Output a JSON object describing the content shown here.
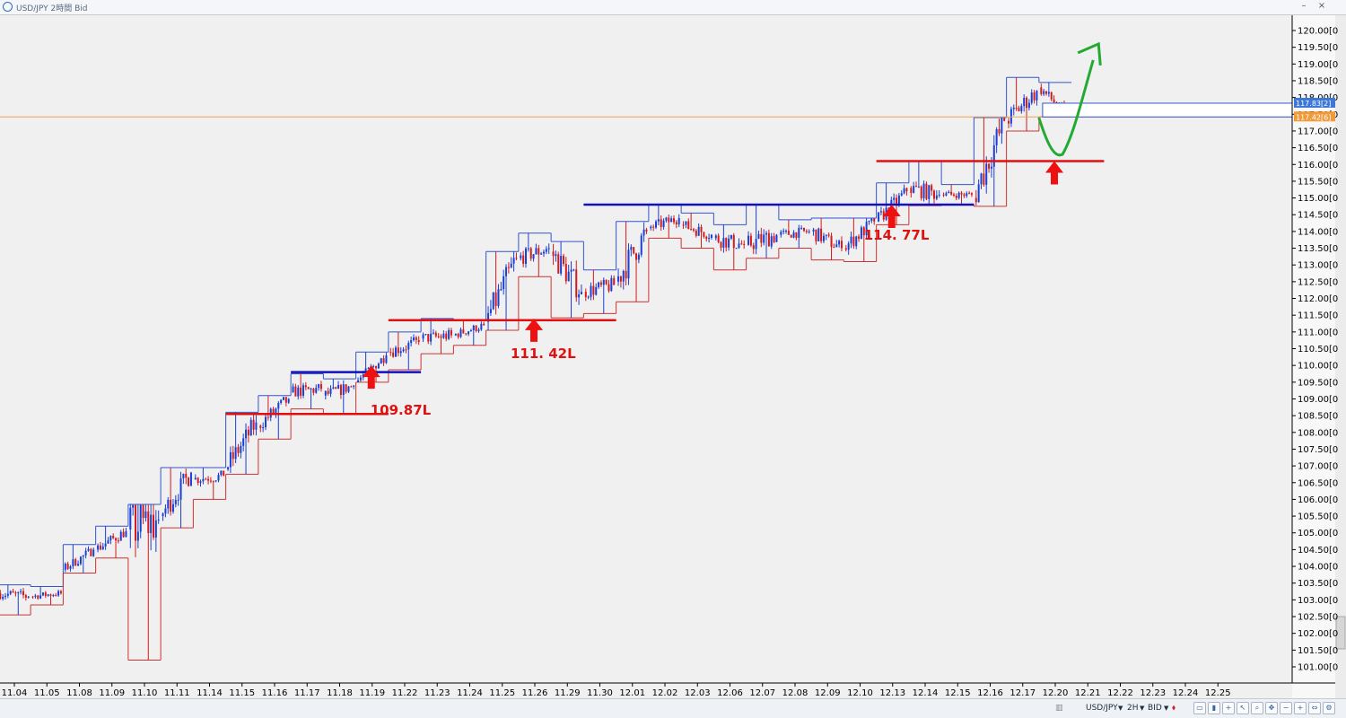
{
  "window": {
    "title": "USD/JPY 2時間 Bid",
    "minimize_icon": "minimize-icon",
    "close_icon": "close-icon"
  },
  "statusbar": {
    "symbol": "USD/JPY",
    "timeframe": "2H",
    "price_type": "BID"
  },
  "colors": {
    "up": "#1a3fd6",
    "down": "#d41a1a",
    "hline_red": "#e01010",
    "hline_blue": "#1010c0",
    "arrow_red": "#ee1111",
    "forecast_green": "#22aa33",
    "current_line": "#f0a050",
    "box_top": "#3355cc",
    "box_bottom": "#cc3333"
  },
  "chart_data": {
    "type": "candlestick",
    "title": "USD/JPY 2時間 Bid",
    "ylim": [
      100.75,
      120.5
    ],
    "y_ticks": [
      "120.00[0",
      "119.50[0",
      "119.00[0",
      "118.50[0",
      "118.00[0",
      "117.50[0",
      "117.00[0",
      "116.50[0",
      "116.00[0",
      "115.50[0",
      "115.00[0",
      "114.50[0",
      "114.00[0",
      "113.50[0",
      "113.00[0",
      "112.50[0",
      "112.00[0",
      "111.50[0",
      "111.00[0",
      "110.50[0",
      "110.00[0",
      "109.50[0",
      "109.00[0",
      "108.50[0",
      "108.00[0",
      "107.50[0",
      "107.00[0",
      "106.50[0",
      "106.00[0",
      "105.50[0",
      "105.00[0",
      "104.50[0",
      "104.00[0",
      "103.50[0",
      "103.00[0",
      "102.50[0",
      "102.00[0",
      "101.50[0",
      "101.00[0"
    ],
    "x_ticks": [
      "11.04",
      "11.05",
      "11.08",
      "11.09",
      "11.10",
      "11.11",
      "11.14",
      "11.15",
      "11.16",
      "11.17",
      "11.18",
      "11.19",
      "11.22",
      "11.23",
      "11.24",
      "11.25",
      "11.26",
      "11.29",
      "11.30",
      "12.01",
      "12.02",
      "12.03",
      "12.06",
      "12.07",
      "12.08",
      "12.09",
      "12.10",
      "12.13",
      "12.14",
      "12.15",
      "12.16",
      "12.17",
      "12.20",
      "12.21",
      "12.22",
      "12.23",
      "12.24",
      "12.25"
    ],
    "day_ranges": [
      {
        "day": "11.04",
        "open": 103.2,
        "high": 103.45,
        "low": 102.55,
        "close": 103.1
      },
      {
        "day": "11.05",
        "open": 103.1,
        "high": 103.4,
        "low": 102.85,
        "close": 103.2
      },
      {
        "day": "11.08",
        "open": 103.9,
        "high": 104.65,
        "low": 103.8,
        "close": 104.5
      },
      {
        "day": "11.09",
        "open": 104.5,
        "high": 105.2,
        "low": 104.25,
        "close": 105.05
      },
      {
        "day": "11.10",
        "open": 105.1,
        "high": 105.85,
        "low": 101.2,
        "close": 105.4
      },
      {
        "day": "11.11",
        "open": 105.5,
        "high": 106.95,
        "low": 105.15,
        "close": 106.8
      },
      {
        "day": "11.14",
        "open": 106.6,
        "high": 106.95,
        "low": 106.0,
        "close": 106.7
      },
      {
        "day": "11.15",
        "open": 106.9,
        "high": 108.6,
        "low": 106.75,
        "close": 108.3
      },
      {
        "day": "11.16",
        "open": 108.2,
        "high": 109.1,
        "low": 107.8,
        "close": 109.0
      },
      {
        "day": "11.17",
        "open": 109.2,
        "high": 109.75,
        "low": 108.7,
        "close": 109.3
      },
      {
        "day": "11.18",
        "open": 109.1,
        "high": 109.6,
        "low": 108.55,
        "close": 109.4
      },
      {
        "day": "11.19",
        "open": 109.5,
        "high": 110.4,
        "low": 109.5,
        "close": 110.3
      },
      {
        "day": "11.22",
        "open": 110.4,
        "high": 111.0,
        "low": 109.87,
        "close": 110.7
      },
      {
        "day": "11.23",
        "open": 110.8,
        "high": 111.4,
        "low": 110.35,
        "close": 110.9
      },
      {
        "day": "11.24",
        "open": 110.9,
        "high": 111.35,
        "low": 110.6,
        "close": 111.2
      },
      {
        "day": "11.25",
        "open": 111.3,
        "high": 113.4,
        "low": 111.05,
        "close": 113.2
      },
      {
        "day": "11.26",
        "open": 113.2,
        "high": 113.95,
        "low": 112.65,
        "close": 113.5
      },
      {
        "day": "11.29",
        "open": 113.4,
        "high": 113.7,
        "low": 111.42,
        "close": 112.2
      },
      {
        "day": "11.30",
        "open": 112.2,
        "high": 112.85,
        "low": 111.55,
        "close": 112.4
      },
      {
        "day": "12.01",
        "open": 112.5,
        "high": 114.3,
        "low": 111.9,
        "close": 114.0
      },
      {
        "day": "12.02",
        "open": 114.1,
        "high": 114.8,
        "low": 113.8,
        "close": 114.4
      },
      {
        "day": "12.03",
        "open": 114.2,
        "high": 114.55,
        "low": 113.5,
        "close": 113.9
      },
      {
        "day": "12.06",
        "open": 113.8,
        "high": 114.2,
        "low": 112.85,
        "close": 113.6
      },
      {
        "day": "12.07",
        "open": 113.6,
        "high": 114.8,
        "low": 113.2,
        "close": 113.9
      },
      {
        "day": "12.08",
        "open": 113.9,
        "high": 114.35,
        "low": 113.5,
        "close": 114.0
      },
      {
        "day": "12.09",
        "open": 114.0,
        "high": 114.4,
        "low": 113.15,
        "close": 113.5
      },
      {
        "day": "12.10",
        "open": 113.5,
        "high": 114.4,
        "low": 113.1,
        "close": 114.3
      },
      {
        "day": "12.13",
        "open": 114.3,
        "high": 115.45,
        "low": 114.2,
        "close": 115.2
      },
      {
        "day": "12.14",
        "open": 115.3,
        "high": 116.1,
        "low": 114.77,
        "close": 115.1
      },
      {
        "day": "12.15",
        "open": 115.1,
        "high": 115.4,
        "low": 114.8,
        "close": 115.1
      },
      {
        "day": "12.16",
        "open": 115.0,
        "high": 117.4,
        "low": 114.75,
        "close": 117.3
      },
      {
        "day": "12.17",
        "open": 117.3,
        "high": 118.6,
        "low": 117.0,
        "close": 118.2
      },
      {
        "day": "12.20",
        "open": 118.3,
        "high": 118.45,
        "low": 117.42,
        "close": 117.45
      }
    ],
    "price_labels": [
      {
        "text": "117.83[2]",
        "price": 117.83
      },
      {
        "text": "117.42[6]",
        "price": 117.42
      }
    ],
    "current_price": 117.42,
    "annotations": [
      {
        "text": "109.87L",
        "price": 109.87
      },
      {
        "text": "111. 42L",
        "price": 111.42
      },
      {
        "text": "114. 77L",
        "price": 114.77
      }
    ],
    "horizontal_lines": [
      {
        "color": "red",
        "price": 108.55,
        "from_day": "11.15",
        "to_day": "11.19"
      },
      {
        "color": "blue",
        "price": 109.8,
        "from_day": "11.17",
        "to_day": "11.22"
      },
      {
        "color": "red",
        "price": 111.35,
        "from_day": "11.22",
        "to_day": "11.30"
      },
      {
        "color": "blue",
        "price": 114.8,
        "from_day": "11.30",
        "to_day": "12.15"
      },
      {
        "color": "red",
        "price": 116.1,
        "from_day": "12.13",
        "to_day": "12.21"
      }
    ],
    "up_arrows": [
      {
        "day": "11.19",
        "price": 109.5
      },
      {
        "day": "11.26",
        "price": 110.9
      },
      {
        "day": "12.13",
        "price": 114.3
      },
      {
        "day": "12.20",
        "price": 115.6
      }
    ],
    "forecast_path": {
      "from": {
        "day": "12.17",
        "price": 117.4
      },
      "trough": {
        "day": "12.20",
        "price": 116.3
      },
      "to": {
        "day": "12.21",
        "price": 119.6
      }
    },
    "grid": false
  }
}
